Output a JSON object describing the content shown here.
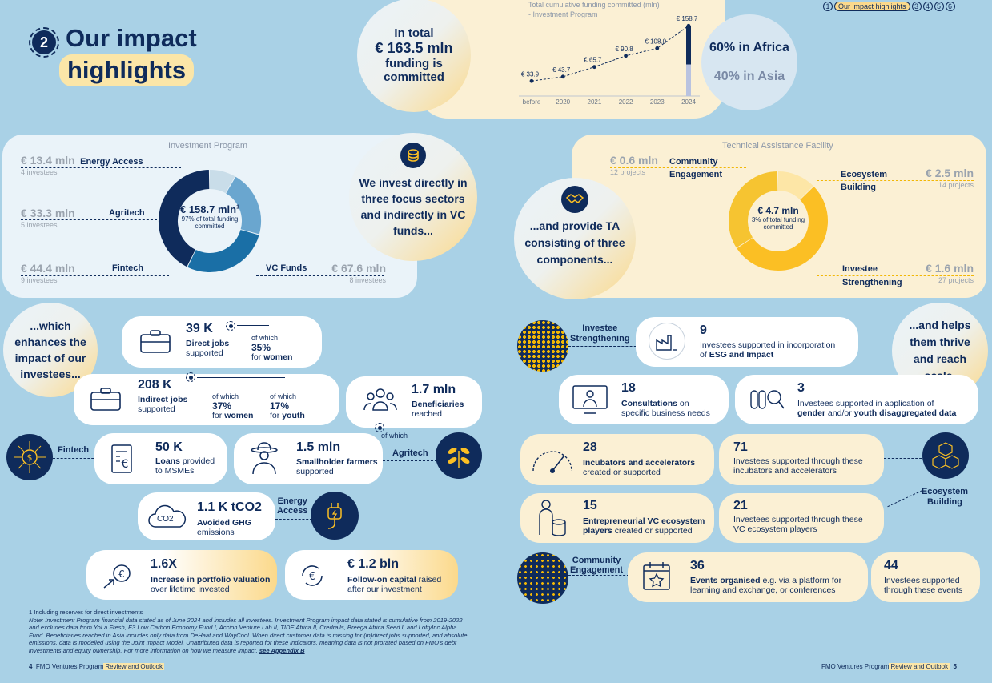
{
  "page": {
    "section_number": "2",
    "title_line1": "Our impact",
    "title_line2": "highlights",
    "nav": {
      "n1": "1",
      "active": "Our impact highlights",
      "n3": "3",
      "n4": "4",
      "n5": "5",
      "n6": "6"
    }
  },
  "total": {
    "line1": "In total",
    "amount": "€ 163.5 mln",
    "line3": "funding is",
    "line4": "committed"
  },
  "regions": {
    "africa": "60% in Africa",
    "asia": "40% in Asia"
  },
  "chart_data": {
    "type": "line",
    "title": "Total cumulative funding committed (mln)",
    "subtitle": "- Investment Program",
    "categories": [
      "before",
      "2020",
      "2021",
      "2022",
      "2023",
      "2024"
    ],
    "labels": [
      "€ 33.9",
      "€ 43.7",
      "€ 65.7",
      "€ 90.8",
      "€ 108.0",
      "€ 158.7"
    ],
    "values": [
      33.9,
      43.7,
      65.7,
      90.8,
      108.0,
      158.7
    ],
    "ylim": [
      0,
      170
    ]
  },
  "ip": {
    "title": "Investment Program",
    "energy": {
      "amount": "€ 13.4 mln",
      "name": "Energy Access",
      "count": "4 investees"
    },
    "agri": {
      "amount": "€ 33.3 mln",
      "name": "Agritech",
      "count": "5 investees"
    },
    "fintech": {
      "amount": "€ 44.4 mln",
      "name": "Fintech",
      "count": "9 investees"
    },
    "vc": {
      "amount": "€ 67.6 mln",
      "name": "VC Funds",
      "count": "8 investees"
    },
    "center_amount": "€ 158.7 mln",
    "center_sup": "1",
    "center_sub": "97% of total funding committed",
    "donut": [
      13.4,
      33.3,
      44.4,
      67.6
    ],
    "colors": [
      "#c9dde9",
      "#6aa6cf",
      "#1a6fa6",
      "#0f2b5b"
    ],
    "focus_text": "We invest directly in three focus sectors and indirectly in VC funds..."
  },
  "ta": {
    "title": "Technical Assistance Facility",
    "community": {
      "amount": "€ 0.6 mln",
      "name1": "Community",
      "name2": "Engagement",
      "count": "12 projects"
    },
    "ecosystem": {
      "amount": "€ 2.5 mln",
      "name1": "Ecosystem",
      "name2": "Building",
      "count": "14 projects"
    },
    "investee": {
      "amount": "€ 1.6 mln",
      "name1": "Investee",
      "name2": "Strengthening",
      "count": "27 projects"
    },
    "center_amount": "€ 4.7 mln",
    "center_sub": "3% of total funding committed",
    "donut": [
      0.6,
      2.5,
      1.6
    ],
    "colors": [
      "#fde6a6",
      "#fbbf24",
      "#f6c431"
    ],
    "provide_text": "...and provide TA consisting of three components..."
  },
  "left": {
    "enhance_text": "...which enhances the impact of our investees...",
    "direct": {
      "num": "39 K",
      "label1": "Direct jobs",
      "label2": "supported",
      "of_which": "of which",
      "pct": "35%",
      "for": "for",
      "group": "women"
    },
    "indirect": {
      "num": "208 K",
      "label1": "Indirect jobs",
      "label2": "supported",
      "of_which1": "of which",
      "pct1": "37%",
      "for1": "for",
      "group1": "women",
      "of_which2": "of which",
      "pct2": "17%",
      "for2": "for",
      "group2": "youth"
    },
    "beneficiaries": {
      "num": "1.7 mln",
      "label1": "Beneficiaries",
      "label2": "reached"
    },
    "of_which": "of which",
    "fintech_tag": "Fintech",
    "agritech_tag": "Agritech",
    "energy_tag1": "Energy",
    "energy_tag2": "Access",
    "loans": {
      "num": "50 K",
      "label_b": "Loans",
      "label_rest": " provided",
      "label2": "to MSMEs"
    },
    "farmers": {
      "num": "1.5 mln",
      "label1": "Smallholder farmers",
      "label2": "supported"
    },
    "co2": {
      "num": "1.1 K tCO2",
      "label1": "Avoided GHG",
      "label2": "emissions",
      "icon_text": "CO2"
    },
    "valuation": {
      "num": "1.6X",
      "label1": "Increase in portfolio valuation",
      "label2": "over lifetime invested"
    },
    "followon": {
      "num": "€ 1.2 bln",
      "label_b": "Follow-on capital",
      "label_rest": " raised",
      "label2": "after our investment"
    }
  },
  "right": {
    "thrive_text": "...and helps them thrive and reach scale.",
    "is_tag1": "Investee",
    "is_tag2": "Strengthening",
    "esg": {
      "num": "9",
      "label1": "Investees supported in incorporation",
      "label2_pre": "of ",
      "label2_b": "ESG and Impact"
    },
    "consult": {
      "num": "18",
      "label_b": "Consultations",
      "label_rest": " on",
      "label2": "specific business needs"
    },
    "gender": {
      "num": "3",
      "label1": "Investees supported in application of",
      "label2_b1": "gender",
      "label2_mid": " and/or ",
      "label2_b2": "youth disaggregated data"
    },
    "incub": {
      "num": "28",
      "label1": "Incubators and accelerators",
      "label2": "created or supported"
    },
    "incub_inv": {
      "num": "71",
      "label1": "Investees supported through these",
      "label2": "incubators and accelerators"
    },
    "eb_tag1": "Ecosystem",
    "eb_tag2": "Building",
    "vc_players": {
      "num": "15",
      "label1": "Entrepreneurial VC ecosystem",
      "label2_b": "players",
      "label2_rest": " created or supported"
    },
    "vc_inv": {
      "num": "21",
      "label1": "Investees supported through these",
      "label2": "VC ecosystem players"
    },
    "ce_tag1": "Community",
    "ce_tag2": "Engagement",
    "events": {
      "num": "36",
      "label_b": "Events organised",
      "label_rest": " e.g. via a platform for",
      "label2": "learning and exchange, or conferences"
    },
    "events_inv": {
      "num": "44",
      "label1": "Investees supported",
      "label2": "through these events"
    }
  },
  "footnote": {
    "fn1": "1  Including reserves for direct investments",
    "note": "Note: Investment Program financial data stated as of June 2024 and includes all investees. Investment Program impact data stated is cumulative from 2019-2022 and excludes data from YoLa Fresh, E3 Low Carbon Economy Fund I, Accion Venture Lab II, TIDE Africa II, Credrails, Breega Africa Seed I, and LoftyInc Alpha Fund. Beneficiaries reached in Asia includes only data from DeHaat and WayCool. When direct customer data is missing for (in)direct jobs supported, and absolute emissions, data is modelled using the Joint Impact Model. Unattributed data is reported for these indicators, meaning data is not prorated based on FMO's debt investments and equity ownership. For more information on how we measure impact,",
    "link": "see Appendix B"
  },
  "footer": {
    "left_num": "4",
    "left_name": "FMO Ventures Program",
    "left_sub": "Review and Outlook",
    "right_name": "FMO Ventures Program",
    "right_sub": "Review and Outlook",
    "right_num": "5"
  }
}
